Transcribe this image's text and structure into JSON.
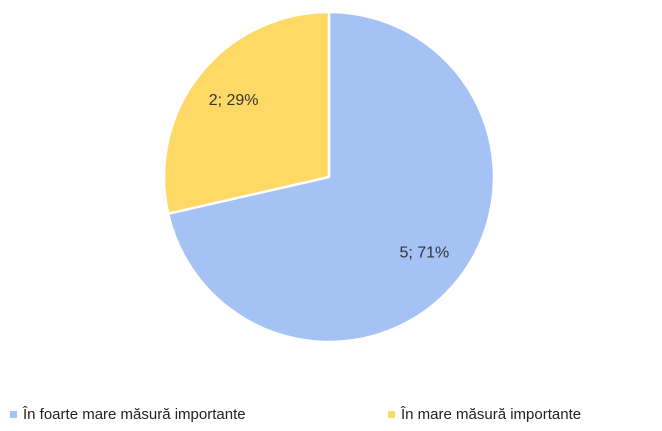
{
  "chart_data": {
    "type": "pie",
    "categories": [
      "În foarte mare măsură importante",
      "În mare măsură importante"
    ],
    "values": [
      5,
      2
    ],
    "value_labels": [
      "5; 71%",
      "2; 29%"
    ],
    "colors": [
      "#a4c2f4",
      "#ffd966"
    ],
    "legend": "bottom"
  }
}
